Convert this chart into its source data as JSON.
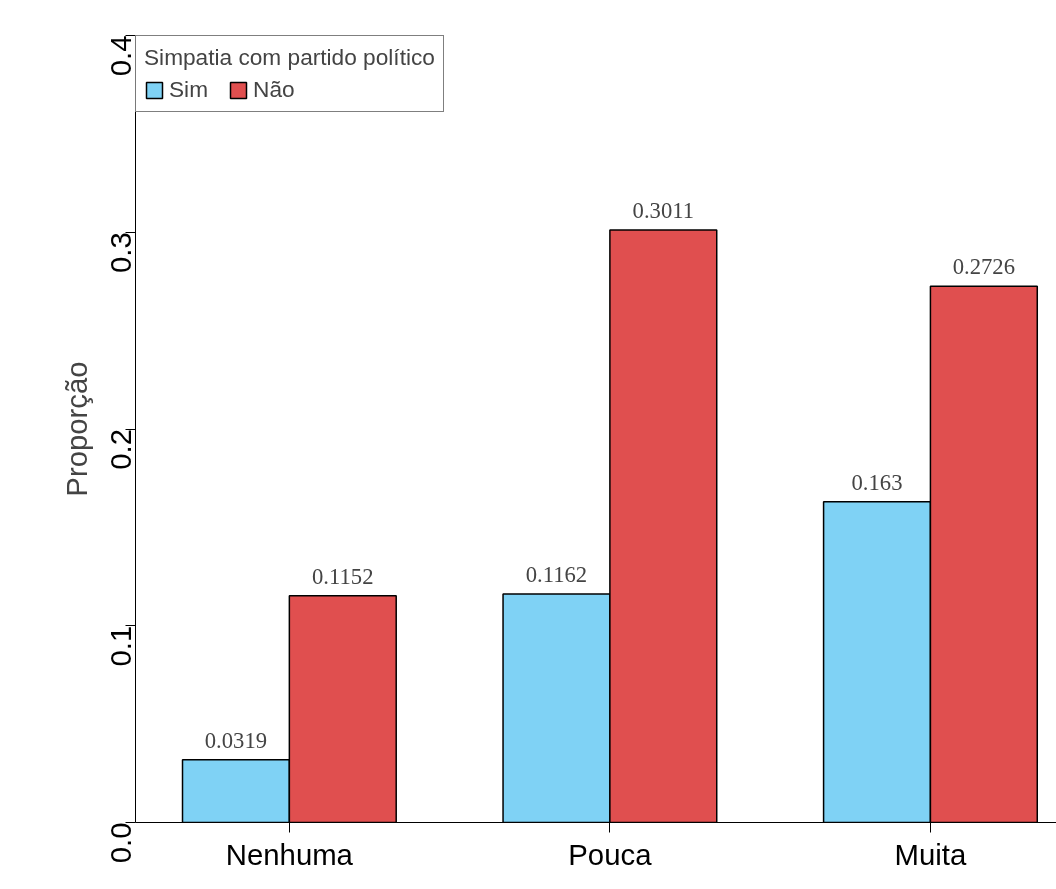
{
  "chart_data": {
    "type": "bar",
    "ylabel": "Proporção",
    "legend_title": "Simpatia com partido político",
    "categories": [
      "Nenhuma",
      "Pouca",
      "Muita"
    ],
    "series": [
      {
        "name": "Sim",
        "color": "#7fd2f5",
        "values": [
          0.0319,
          0.1162,
          0.163
        ]
      },
      {
        "name": "Não",
        "color": "#e04f4f",
        "values": [
          0.1152,
          0.3011,
          0.2726
        ]
      }
    ],
    "ylim": [
      0,
      0.4
    ],
    "yticks": [
      {
        "value": 0,
        "label": "0.0"
      },
      0.1,
      0.2,
      0.3,
      0.4
    ],
    "data_labels": true,
    "legend": "top left",
    "grid": false
  }
}
